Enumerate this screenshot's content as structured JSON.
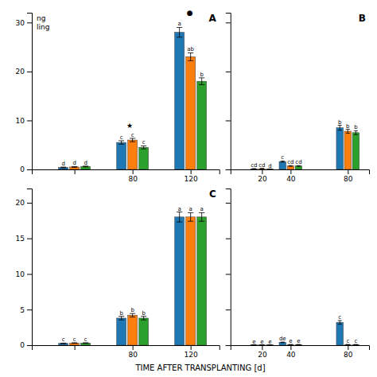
{
  "chart_data": [
    {
      "type": "bar",
      "title": "A",
      "x": [
        40,
        80,
        120
      ],
      "series": [
        {
          "values": [
            0.4,
            5.5,
            28.0
          ],
          "errors": [
            0.08,
            0.35,
            1.0
          ],
          "letters": [
            "d",
            "c",
            "a"
          ]
        },
        {
          "values": [
            0.5,
            6.0,
            23.0
          ],
          "errors": [
            0.08,
            0.35,
            0.8
          ],
          "letters": [
            "d",
            "c",
            "ab"
          ]
        },
        {
          "values": [
            0.6,
            4.5,
            18.0
          ],
          "errors": [
            0.08,
            0.3,
            0.7
          ],
          "letters": [
            "d",
            "c",
            "b"
          ]
        }
      ],
      "xlim": [
        10.6192,
        139.7808
      ],
      "ylim": [
        0,
        32
      ],
      "xticks": [
        {
          "value": 40,
          "label": null
        },
        80,
        120
      ],
      "yticks": [
        0,
        10,
        20,
        30
      ],
      "annotations": [
        {
          "text": "★",
          "x": 78,
          "y": 8.5
        },
        {
          "text": "●",
          "x": 119.5,
          "y": 31.5
        },
        {
          "text": "ng"
        },
        {
          "text": "ling"
        }
      ]
    },
    {
      "type": "bar",
      "title": "B",
      "x": [
        20,
        40,
        80
      ],
      "series": [
        {
          "values": [
            0.12,
            1.6,
            8.5
          ],
          "errors": [
            0.04,
            0.12,
            0.5
          ],
          "letters": [
            "cd",
            "c",
            "b"
          ]
        },
        {
          "values": [
            0.15,
            0.7,
            7.8
          ],
          "errors": [
            0.04,
            0.08,
            0.4
          ],
          "letters": [
            "cd",
            "cd",
            "b"
          ]
        },
        {
          "values": [
            0.05,
            0.7,
            7.5
          ],
          "errors": [
            0.02,
            0.08,
            0.4
          ],
          "letters": [
            "d",
            "cd",
            "b"
          ]
        }
      ],
      "xlim": [
        -2.0356,
        94.8356
      ],
      "ylim": [
        0,
        32
      ],
      "xticks": [
        20,
        40,
        80
      ],
      "yticks": [
        0,
        10,
        20,
        30
      ],
      "tick_labels": "x"
    },
    {
      "type": "bar",
      "title": "C",
      "xlabel": "TIME AFTER TRANSPLANTING [d]",
      "x": [
        40,
        80,
        120
      ],
      "series": [
        {
          "values": [
            0.25,
            3.8,
            18.0
          ],
          "errors": [
            0.04,
            0.25,
            0.7
          ],
          "letters": [
            "c",
            "b",
            "a"
          ]
        },
        {
          "values": [
            0.3,
            4.2,
            18.0
          ],
          "errors": [
            0.04,
            0.25,
            0.6
          ],
          "letters": [
            "c",
            "b",
            "a"
          ]
        },
        {
          "values": [
            0.3,
            3.8,
            18.0
          ],
          "errors": [
            0.04,
            0.25,
            0.6
          ],
          "letters": [
            "c",
            "b",
            "a"
          ]
        }
      ],
      "xlim": [
        10.6192,
        139.7808
      ],
      "ylim": [
        0,
        22
      ],
      "xticks": [
        {
          "value": 40,
          "label": null
        },
        80,
        120
      ],
      "yticks": [
        0,
        5,
        10,
        15,
        20
      ]
    },
    {
      "type": "bar",
      "x": [
        20,
        40,
        80
      ],
      "series": [
        {
          "values": [
            0.04,
            0.4,
            3.2
          ],
          "errors": [
            0.01,
            0.04,
            0.25
          ],
          "letters": [
            "e",
            "de",
            "c"
          ]
        },
        {
          "values": [
            0.04,
            0.08,
            0.08
          ],
          "errors": [
            0.01,
            0.01,
            0.01
          ],
          "letters": [
            "e",
            "e",
            "c"
          ]
        },
        {
          "values": [
            0.04,
            0.08,
            0.08
          ],
          "errors": [
            0.01,
            0.01,
            0.01
          ],
          "letters": [
            "e",
            "e",
            "c"
          ]
        }
      ],
      "xlim": [
        -2.0356,
        94.8356
      ],
      "ylim": [
        0,
        22
      ],
      "xticks": [
        20,
        40,
        80
      ],
      "yticks": [
        0,
        5,
        10,
        15,
        20
      ],
      "tick_labels": "x"
    }
  ]
}
